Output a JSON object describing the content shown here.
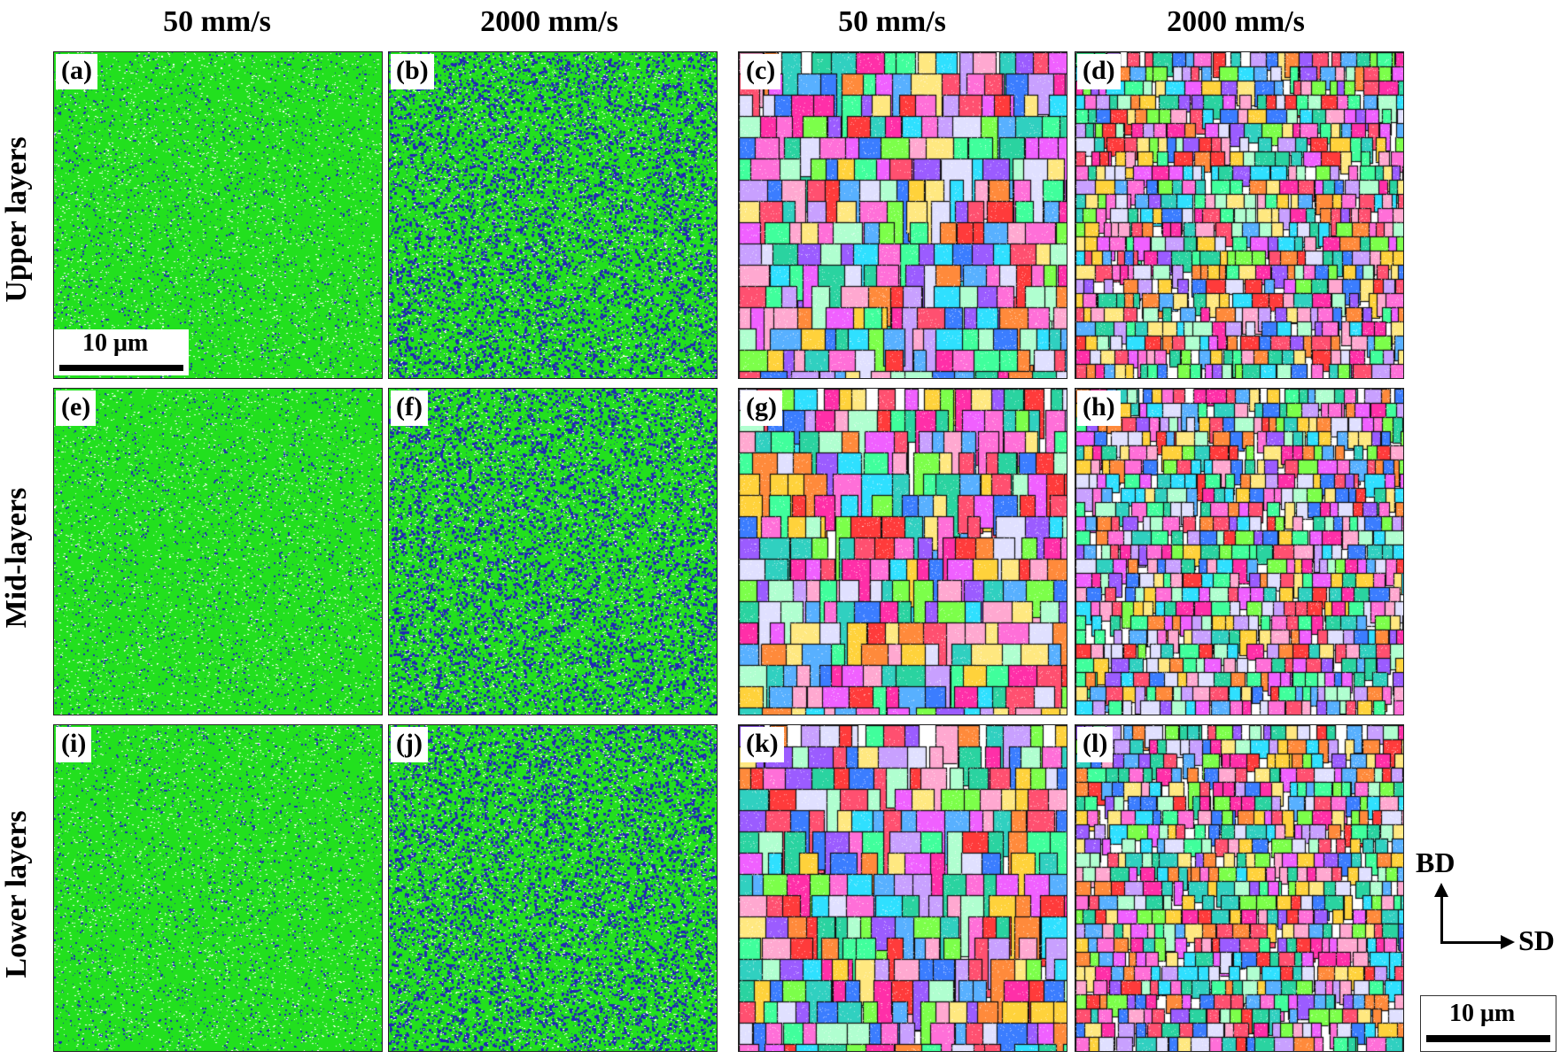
{
  "column_headers": [
    "50 mm/s",
    "2000 mm/s",
    "50 mm/s",
    "2000 mm/s"
  ],
  "row_headers": [
    "Upper layers",
    "Mid-layers",
    "Lower layers"
  ],
  "panels": [
    {
      "label": "(a)",
      "kind": "phase-map"
    },
    {
      "label": "(b)",
      "kind": "phase-map"
    },
    {
      "label": "(c)",
      "kind": "orientation-map"
    },
    {
      "label": "(d)",
      "kind": "orientation-map"
    },
    {
      "label": "(e)",
      "kind": "phase-map"
    },
    {
      "label": "(f)",
      "kind": "phase-map"
    },
    {
      "label": "(g)",
      "kind": "orientation-map"
    },
    {
      "label": "(h)",
      "kind": "orientation-map"
    },
    {
      "label": "(i)",
      "kind": "phase-map"
    },
    {
      "label": "(j)",
      "kind": "phase-map"
    },
    {
      "label": "(k)",
      "kind": "orientation-map"
    },
    {
      "label": "(l)",
      "kind": "orientation-map"
    }
  ],
  "scale_bars": {
    "left": "10 μm",
    "right": "10 μm"
  },
  "axes": {
    "vertical": "BD",
    "horizontal": "SD"
  },
  "colors": {
    "phase_green": "#22e01e",
    "phase_blue": "#1f28b4",
    "boundary": "#111111"
  }
}
